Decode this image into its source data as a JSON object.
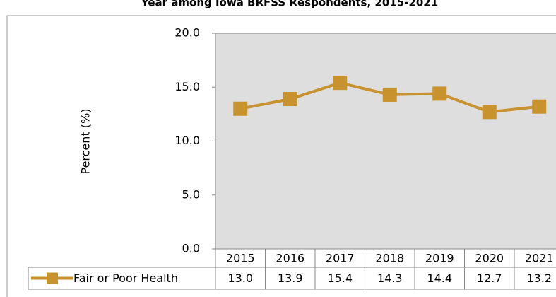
{
  "chart_data": {
    "type": "line",
    "title": "Year among Iowa BRFSS Respondents, 2015-2021",
    "y_label": "Percent (%)",
    "categories": [
      "2015",
      "2016",
      "2017",
      "2018",
      "2019",
      "2020",
      "2021"
    ],
    "series": [
      {
        "name": "Fair or Poor Health",
        "color": "#c8922e",
        "values": [
          13.0,
          13.9,
          15.4,
          14.3,
          14.4,
          12.7,
          13.2
        ],
        "value_labels": [
          "13.0",
          "13.9",
          "15.4",
          "14.3",
          "14.4",
          "12.7",
          "13.2"
        ]
      }
    ],
    "ylim": [
      0,
      20
    ],
    "yticks": [
      {
        "value": 0,
        "label": "0.0"
      },
      {
        "value": 5,
        "label": "5.0"
      },
      {
        "value": 10,
        "label": "10.0"
      },
      {
        "value": 15,
        "label": "15.0"
      },
      {
        "value": 20,
        "label": "20.0"
      }
    ],
    "grid": false,
    "plot_background": "#dedede"
  }
}
